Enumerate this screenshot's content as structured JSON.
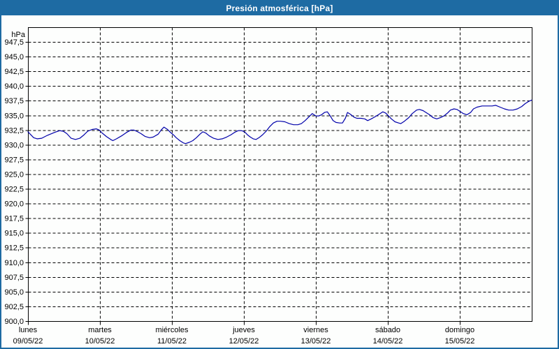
{
  "chart_data": {
    "type": "line",
    "title": "Presión atmosférica [hPa]",
    "legend": "none",
    "grid": "dashed",
    "y_axis": {
      "unit": "hPa",
      "min": 900,
      "max": 950,
      "tick_step": 2.5,
      "decimal_separator": "comma",
      "tick_labels": [
        "947,5",
        "945,0",
        "942,5",
        "940,0",
        "937,5",
        "935,0",
        "932,5",
        "930,0",
        "927,5",
        "925,0",
        "922,5",
        "920,0",
        "917,5",
        "915,0",
        "912,5",
        "910,0",
        "907,5",
        "905,0",
        "902,5",
        "900,0"
      ]
    },
    "x_axis": {
      "days": [
        {
          "name": "lunes",
          "date": "09/05/22"
        },
        {
          "name": "martes",
          "date": "10/05/22"
        },
        {
          "name": "miércoles",
          "date": "11/05/22"
        },
        {
          "name": "jueves",
          "date": "12/05/22"
        },
        {
          "name": "viernes",
          "date": "13/05/22"
        },
        {
          "name": "sábado",
          "date": "14/05/22"
        },
        {
          "name": "domingo",
          "date": "15/05/22"
        }
      ]
    },
    "series": [
      {
        "name": "Presión atmosférica",
        "color": "#0000aa",
        "x_unit": "days_from_start",
        "points": [
          [
            0.0,
            932.2
          ],
          [
            0.04,
            931.7
          ],
          [
            0.08,
            931.2
          ],
          [
            0.13,
            931.0
          ],
          [
            0.19,
            931.1
          ],
          [
            0.27,
            931.6
          ],
          [
            0.37,
            932.1
          ],
          [
            0.44,
            932.4
          ],
          [
            0.49,
            932.3
          ],
          [
            0.54,
            931.9
          ],
          [
            0.6,
            931.1
          ],
          [
            0.66,
            930.9
          ],
          [
            0.72,
            931.1
          ],
          [
            0.78,
            931.7
          ],
          [
            0.83,
            932.3
          ],
          [
            0.89,
            932.6
          ],
          [
            0.95,
            932.7
          ],
          [
            0.99,
            932.5
          ],
          [
            1.03,
            932.0
          ],
          [
            1.09,
            931.4
          ],
          [
            1.15,
            930.9
          ],
          [
            1.18,
            930.7
          ],
          [
            1.23,
            931.0
          ],
          [
            1.3,
            931.5
          ],
          [
            1.37,
            932.1
          ],
          [
            1.43,
            932.5
          ],
          [
            1.47,
            932.5
          ],
          [
            1.51,
            932.3
          ],
          [
            1.57,
            931.9
          ],
          [
            1.63,
            931.4
          ],
          [
            1.69,
            931.2
          ],
          [
            1.74,
            931.3
          ],
          [
            1.81,
            931.8
          ],
          [
            1.85,
            932.5
          ],
          [
            1.89,
            933.0
          ],
          [
            1.94,
            932.6
          ],
          [
            1.98,
            932.1
          ],
          [
            2.02,
            931.7
          ],
          [
            2.06,
            931.2
          ],
          [
            2.11,
            930.7
          ],
          [
            2.16,
            930.3
          ],
          [
            2.19,
            930.2
          ],
          [
            2.24,
            930.4
          ],
          [
            2.29,
            930.7
          ],
          [
            2.34,
            931.2
          ],
          [
            2.39,
            931.8
          ],
          [
            2.43,
            932.2
          ],
          [
            2.47,
            932.0
          ],
          [
            2.52,
            931.5
          ],
          [
            2.58,
            931.1
          ],
          [
            2.64,
            930.9
          ],
          [
            2.7,
            931.0
          ],
          [
            2.76,
            931.3
          ],
          [
            2.82,
            931.7
          ],
          [
            2.87,
            932.1
          ],
          [
            2.92,
            932.4
          ],
          [
            2.97,
            932.4
          ],
          [
            3.01,
            932.2
          ],
          [
            3.05,
            931.7
          ],
          [
            3.09,
            931.3
          ],
          [
            3.13,
            931.0
          ],
          [
            3.17,
            930.9
          ],
          [
            3.21,
            931.2
          ],
          [
            3.26,
            931.7
          ],
          [
            3.31,
            932.3
          ],
          [
            3.36,
            933.1
          ],
          [
            3.41,
            933.7
          ],
          [
            3.46,
            934.0
          ],
          [
            3.51,
            934.0
          ],
          [
            3.57,
            933.9
          ],
          [
            3.63,
            933.6
          ],
          [
            3.69,
            933.4
          ],
          [
            3.75,
            933.4
          ],
          [
            3.8,
            933.6
          ],
          [
            3.85,
            934.1
          ],
          [
            3.9,
            934.7
          ],
          [
            3.95,
            935.3
          ],
          [
            4.0,
            934.9
          ],
          [
            4.04,
            934.9
          ],
          [
            4.08,
            935.1
          ],
          [
            4.12,
            935.5
          ],
          [
            4.16,
            935.6
          ],
          [
            4.2,
            934.9
          ],
          [
            4.24,
            934.1
          ],
          [
            4.28,
            933.8
          ],
          [
            4.33,
            933.7
          ],
          [
            4.37,
            933.7
          ],
          [
            4.41,
            934.5
          ],
          [
            4.44,
            935.5
          ],
          [
            4.48,
            935.2
          ],
          [
            4.53,
            934.7
          ],
          [
            4.57,
            934.5
          ],
          [
            4.63,
            934.5
          ],
          [
            4.68,
            934.4
          ],
          [
            4.72,
            934.1
          ],
          [
            4.77,
            934.4
          ],
          [
            4.83,
            934.8
          ],
          [
            4.88,
            935.2
          ],
          [
            4.93,
            935.6
          ],
          [
            4.97,
            935.4
          ],
          [
            5.01,
            934.9
          ],
          [
            5.05,
            934.4
          ],
          [
            5.1,
            933.9
          ],
          [
            5.15,
            933.7
          ],
          [
            5.18,
            933.6
          ],
          [
            5.23,
            934.0
          ],
          [
            5.29,
            934.6
          ],
          [
            5.34,
            935.3
          ],
          [
            5.4,
            935.9
          ],
          [
            5.44,
            936.0
          ],
          [
            5.49,
            935.8
          ],
          [
            5.53,
            935.5
          ],
          [
            5.58,
            935.1
          ],
          [
            5.63,
            934.6
          ],
          [
            5.68,
            934.4
          ],
          [
            5.73,
            934.6
          ],
          [
            5.78,
            934.9
          ],
          [
            5.83,
            935.4
          ],
          [
            5.87,
            935.9
          ],
          [
            5.92,
            936.1
          ],
          [
            5.96,
            936.0
          ],
          [
            6.0,
            935.7
          ],
          [
            6.05,
            935.3
          ],
          [
            6.1,
            935.1
          ],
          [
            6.15,
            935.5
          ],
          [
            6.19,
            936.1
          ],
          [
            6.24,
            936.4
          ],
          [
            6.31,
            936.6
          ],
          [
            6.38,
            936.6
          ],
          [
            6.45,
            936.6
          ],
          [
            6.5,
            936.7
          ],
          [
            6.56,
            936.4
          ],
          [
            6.62,
            936.1
          ],
          [
            6.68,
            935.9
          ],
          [
            6.74,
            935.9
          ],
          [
            6.8,
            936.1
          ],
          [
            6.86,
            936.5
          ],
          [
            6.91,
            937.0
          ],
          [
            6.96,
            937.4
          ],
          [
            7.0,
            937.6
          ]
        ]
      }
    ],
    "colors": {
      "frame": "#1e6ba3",
      "title_text": "#ffffff",
      "plot_background": "#fdfefd",
      "grid": "#000000",
      "line": "#0000aa"
    }
  }
}
